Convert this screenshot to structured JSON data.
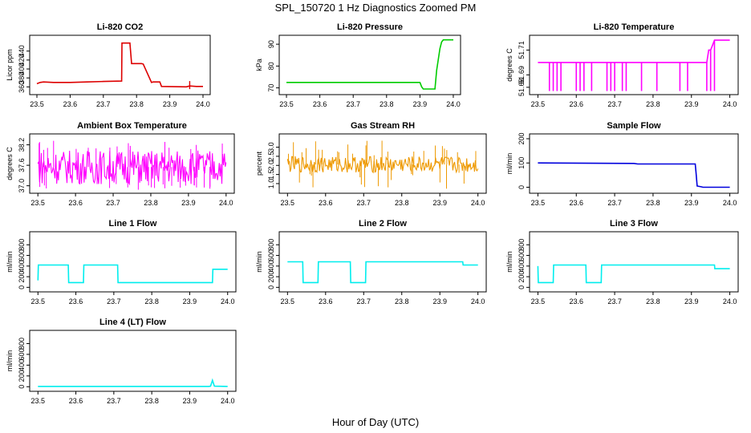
{
  "figure": {
    "title": "SPL_150720  1 Hz Diagnostics Zoomed PM",
    "xlabel": "Hour of Day (UTC)"
  },
  "chart_data": [
    {
      "type": "line",
      "title": "Li-820 CO2",
      "ylabel": "Licor ppm",
      "color": "#dd0000",
      "xlim": [
        23.5,
        24.0
      ],
      "ylim": [
        348,
        470
      ],
      "xticks": [
        23.5,
        23.6,
        23.7,
        23.8,
        23.9,
        24.0
      ],
      "yticks": [
        360,
        380,
        400,
        420,
        440
      ],
      "series": [
        {
          "x": [
            23.5,
            23.51,
            23.52,
            23.55,
            23.6,
            23.65,
            23.7,
            23.755,
            23.756,
            23.78,
            23.785,
            23.815,
            23.82,
            23.845,
            23.85,
            23.87,
            23.875,
            23.95,
            23.96,
            23.98,
            24.0
          ],
          "y": [
            367,
            370,
            371,
            370,
            370,
            371,
            372,
            373,
            458,
            458,
            412,
            412,
            411,
            370,
            371,
            371,
            361,
            360,
            362,
            361,
            361
          ]
        }
      ],
      "spikes": [
        {
          "x": 23.96,
          "y": [
            355,
            373
          ]
        }
      ]
    },
    {
      "type": "line",
      "title": "Li-820 Pressure",
      "ylabel": "kPa",
      "color": "#00cc00",
      "xlim": [
        23.5,
        24.0
      ],
      "ylim": [
        68,
        93
      ],
      "xticks": [
        23.5,
        23.6,
        23.7,
        23.8,
        23.9,
        24.0
      ],
      "yticks": [
        70,
        80,
        90
      ],
      "series": [
        {
          "x": [
            23.5,
            23.7,
            23.9,
            23.905,
            23.91,
            23.945,
            23.95,
            23.96,
            23.965,
            23.97,
            24.0
          ],
          "y": [
            72.5,
            72.5,
            72.5,
            70.5,
            69.5,
            69.5,
            78,
            88,
            91,
            92,
            92
          ]
        }
      ]
    },
    {
      "type": "line",
      "title": "Li-820 Temperature",
      "ylabel": "degrees C",
      "color": "#ff00ff",
      "xlim": [
        23.5,
        24.0
      ],
      "ylim": [
        51.676,
        51.72
      ],
      "xticks": [
        23.5,
        23.6,
        23.7,
        23.8,
        23.9,
        24.0
      ],
      "yticks": [
        51.68,
        51.69,
        51.71
      ],
      "series": [
        {
          "x": [
            23.5,
            23.94,
            23.945,
            23.95,
            23.96,
            23.97,
            24.0
          ],
          "y": [
            51.7,
            51.7,
            51.71,
            51.71,
            51.718,
            51.718,
            51.718
          ]
        }
      ],
      "drops": {
        "low": 51.677,
        "x": [
          23.53,
          23.54,
          23.55,
          23.56,
          23.6,
          23.61,
          23.62,
          23.64,
          23.68,
          23.69,
          23.7,
          23.72,
          23.73,
          23.77,
          23.81,
          23.87,
          23.89,
          23.94,
          23.95,
          23.96
        ]
      }
    },
    {
      "type": "noise",
      "title": "Ambient Box Temperature",
      "ylabel": "degrees C",
      "color": "#ff00ff",
      "xlim": [
        23.5,
        24.0
      ],
      "ylim": [
        36.85,
        38.45
      ],
      "xticks": [
        23.5,
        23.6,
        23.7,
        23.8,
        23.9,
        24.0
      ],
      "yticks": [
        37.0,
        37.6,
        38.2
      ],
      "band": [
        37.05,
        38.05
      ],
      "mean": 37.55,
      "extremes": [
        36.88,
        38.32
      ]
    },
    {
      "type": "noise",
      "title": "Gas Stream RH",
      "ylabel": "percent",
      "color": "#ee9900",
      "xlim": [
        23.5,
        24.0
      ],
      "ylim": [
        0.6,
        3.6
      ],
      "xticks": [
        23.5,
        23.6,
        23.7,
        23.8,
        23.9,
        24.0
      ],
      "yticks": [
        1.0,
        1.5,
        2.0,
        2.5,
        3.0
      ],
      "band": [
        1.6,
        2.5
      ],
      "mean": 2.05,
      "extremes": [
        0.7,
        3.4
      ]
    },
    {
      "type": "line",
      "title": "Sample Flow",
      "ylabel": "ml/min",
      "color": "#0000dd",
      "xlim": [
        23.5,
        24.0
      ],
      "ylim": [
        -15,
        210
      ],
      "xticks": [
        23.5,
        23.6,
        23.7,
        23.8,
        23.9,
        24.0
      ],
      "yticks": [
        0,
        100,
        200
      ],
      "series": [
        {
          "x": [
            23.5,
            23.75,
            23.76,
            23.91,
            23.912,
            23.915,
            23.925,
            23.93,
            24.0
          ],
          "y": [
            100,
            98,
            96,
            96,
            60,
            5,
            2,
            0,
            0
          ]
        }
      ]
    },
    {
      "type": "line",
      "title": "Line 1 Flow",
      "ylabel": "ml/min",
      "color": "#00eeee",
      "xlim": [
        23.5,
        24.0
      ],
      "ylim": [
        -40,
        1000
      ],
      "xticks": [
        23.5,
        23.6,
        23.7,
        23.8,
        23.9,
        24.0
      ],
      "yticks": [
        0,
        200,
        400,
        600,
        800
      ],
      "series": [
        {
          "x": [
            23.5,
            23.501,
            23.58,
            23.581,
            23.62,
            23.621,
            23.71,
            23.711,
            23.96,
            23.961,
            24.0
          ],
          "y": [
            130,
            420,
            420,
            90,
            90,
            420,
            420,
            90,
            90,
            340,
            340
          ]
        }
      ]
    },
    {
      "type": "line",
      "title": "Line 2 Flow",
      "ylabel": "ml/min",
      "color": "#00eeee",
      "xlim": [
        23.5,
        24.0
      ],
      "ylim": [
        -40,
        1000
      ],
      "xticks": [
        23.5,
        23.6,
        23.7,
        23.8,
        23.9,
        24.0
      ],
      "yticks": [
        0,
        200,
        400,
        600,
        800
      ],
      "series": [
        {
          "x": [
            23.5,
            23.54,
            23.541,
            23.58,
            23.581,
            23.665,
            23.666,
            23.705,
            23.706,
            23.96,
            23.961,
            24.0
          ],
          "y": [
            480,
            480,
            90,
            90,
            480,
            480,
            90,
            90,
            480,
            480,
            420,
            420
          ]
        }
      ]
    },
    {
      "type": "line",
      "title": "Line 3 Flow",
      "ylabel": "ml/min",
      "color": "#00eeee",
      "xlim": [
        23.5,
        24.0
      ],
      "ylim": [
        -40,
        1000
      ],
      "xticks": [
        23.5,
        23.6,
        23.7,
        23.8,
        23.9,
        24.0
      ],
      "yticks": [
        0,
        200,
        400,
        600,
        800
      ],
      "series": [
        {
          "x": [
            23.5,
            23.501,
            23.54,
            23.541,
            23.625,
            23.626,
            23.665,
            23.666,
            23.96,
            23.961,
            24.0
          ],
          "y": [
            400,
            90,
            90,
            420,
            420,
            90,
            90,
            420,
            420,
            350,
            350
          ]
        }
      ]
    },
    {
      "type": "line",
      "title": "Line 4 (LT) Flow",
      "ylabel": "ml/min",
      "color": "#00eeee",
      "xlim": [
        23.5,
        24.0
      ],
      "ylim": [
        -40,
        1000
      ],
      "xticks": [
        23.5,
        23.6,
        23.7,
        23.8,
        23.9,
        24.0
      ],
      "yticks": [
        0,
        200,
        400,
        600,
        800
      ],
      "series": [
        {
          "x": [
            23.5,
            23.95,
            23.955,
            23.96,
            23.965,
            24.0
          ],
          "y": [
            5,
            5,
            10,
            120,
            10,
            5
          ]
        }
      ]
    }
  ]
}
